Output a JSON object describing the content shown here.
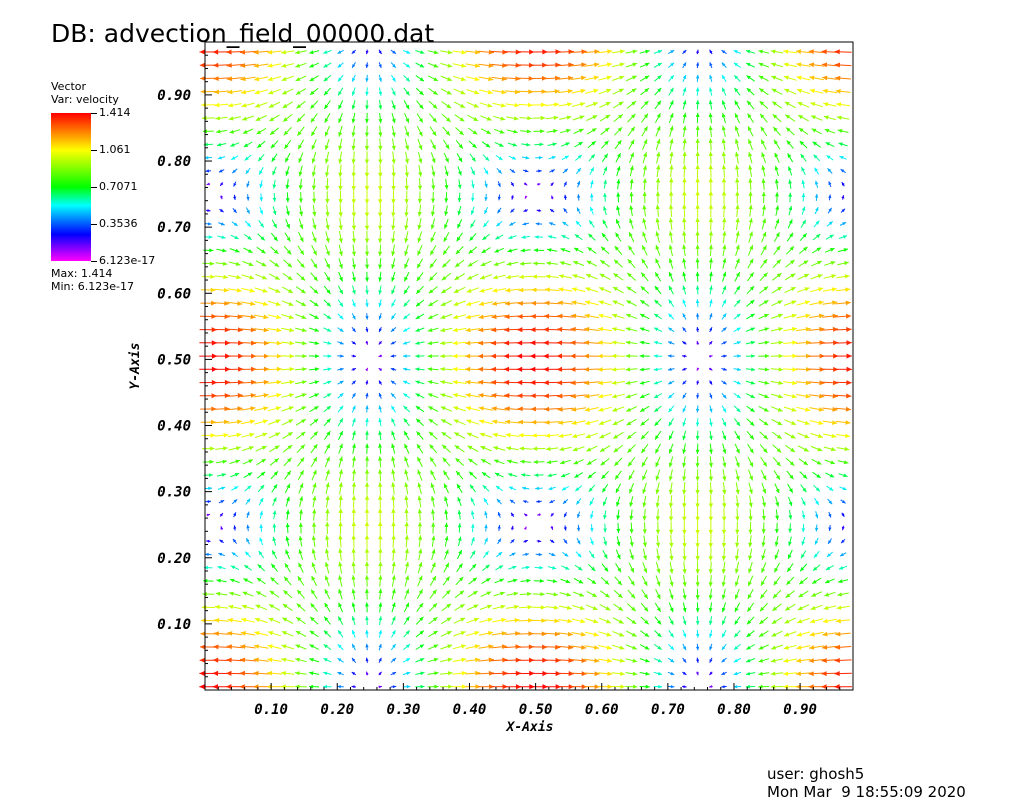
{
  "db_title": "DB: advection_field_00000.dat",
  "legend": {
    "plot_type": "Vector",
    "var_label": "Var: velocity",
    "ticks": [
      "1.414",
      "1.061",
      "0.7071",
      "0.3536",
      "6.123e-17"
    ],
    "max_label": "Max: 1.414",
    "min_label": "Min: 6.123e-17",
    "colormap": [
      "#ff00ff",
      "#0000ff",
      "#0080ff",
      "#00ffff",
      "#00ff00",
      "#80ff00",
      "#ffff00",
      "#ff7f00",
      "#ff0000"
    ]
  },
  "footer": {
    "user": "user: ghosh5",
    "date": "Mon Mar  9 18:55:09 2020"
  },
  "chart_data": {
    "type": "vector_field",
    "xlabel": "X-Axis",
    "ylabel": "Y-Axis",
    "xlim": [
      0.0,
      0.98
    ],
    "ylim": [
      0.0,
      0.98
    ],
    "xticks": [
      "0.10",
      "0.20",
      "0.30",
      "0.40",
      "0.50",
      "0.60",
      "0.70",
      "0.80",
      "0.90"
    ],
    "yticks": [
      "0.10",
      "0.20",
      "0.30",
      "0.40",
      "0.50",
      "0.60",
      "0.70",
      "0.80",
      "0.90"
    ],
    "variable": "velocity",
    "magnitude_range": [
      6.123e-17,
      1.414
    ],
    "sample_spacing": 0.02,
    "series": [
      {
        "name": "velocity",
        "x": [
          0.1,
          0.3,
          0.5,
          0.7,
          0.9,
          0.2,
          0.4,
          0.6,
          0.8
        ],
        "y": [
          0.9,
          0.7,
          0.5,
          0.3,
          0.1,
          0.4,
          0.6,
          0.2,
          0.8
        ]
      }
    ]
  }
}
